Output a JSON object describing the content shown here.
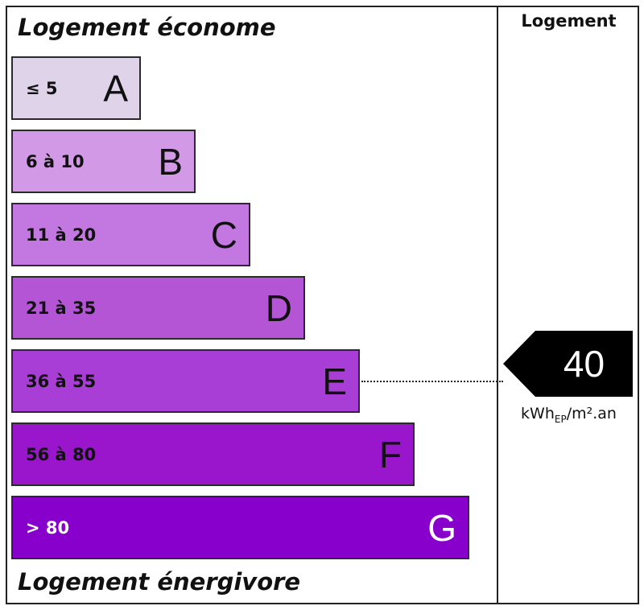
{
  "chart_data": {
    "type": "bar",
    "title_top": "Logement économe",
    "title_bottom": "Logement énergivore",
    "column_title": "Logement",
    "categories": [
      "A",
      "B",
      "C",
      "D",
      "E",
      "F",
      "G"
    ],
    "ranges": [
      "≤ 5",
      "6 à 10",
      "11 à 20",
      "21 à 35",
      "36 à 55",
      "56 à 80",
      "> 80"
    ],
    "colors": [
      "#ded3e8",
      "#d29ae6",
      "#c278e0",
      "#b455d6",
      "#a93ed6",
      "#9a16cc",
      "#8800cc"
    ],
    "light_text": [
      false,
      false,
      false,
      false,
      false,
      false,
      true
    ],
    "value": 40,
    "value_class": "E",
    "unit_main": "kWh",
    "unit_sub": "EP",
    "unit_tail": "/m².an"
  }
}
